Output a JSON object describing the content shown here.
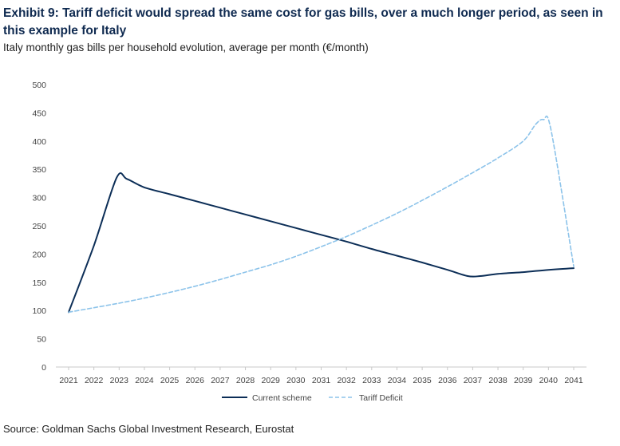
{
  "title": "Exhibit 9: Tariff deficit would spread the same cost for gas bills, over a much longer period, as seen in this example for Italy",
  "subtitle": "Italy monthly gas bills per household evolution, average per month (€/month)",
  "source": "Source: Goldman Sachs Global Investment Research, Eurostat",
  "colors": {
    "current": "#0c2e57",
    "tariff": "#8cc3ea",
    "axis": "#c8c8c8"
  },
  "chart_data": {
    "type": "line",
    "title": "Italy monthly gas bills per household evolution, average per month (€/month)",
    "xlabel": "",
    "ylabel": "€/month",
    "ylim": [
      0,
      500
    ],
    "yticks": [
      "0",
      "50",
      "100",
      "150",
      "200",
      "250",
      "300",
      "350",
      "400",
      "450",
      "500"
    ],
    "xticks": [
      "2021",
      "2022",
      "2023",
      "2024",
      "2025",
      "2026",
      "2027",
      "2028",
      "2029",
      "2030",
      "2031",
      "2032",
      "2033",
      "2034",
      "2035",
      "2036",
      "2037",
      "2038",
      "2039",
      "2040",
      "2041"
    ],
    "series": [
      {
        "name": "Current scheme",
        "style": "solid",
        "x": [
          2021,
          2022,
          2022.9,
          2023.3,
          2024,
          2025,
          2026,
          2027,
          2028,
          2029,
          2030,
          2031,
          2032,
          2033,
          2034,
          2035,
          2036,
          2036.8,
          2037.3,
          2038,
          2039,
          2040,
          2041
        ],
        "values": [
          97,
          215,
          335,
          333,
          318,
          306,
          294,
          282,
          270,
          258,
          246,
          234,
          222,
          209,
          197,
          185,
          172,
          161,
          161,
          165,
          168,
          172,
          175
        ]
      },
      {
        "name": "Tariff Deficit",
        "style": "dashed",
        "x": [
          2021,
          2022,
          2023,
          2024,
          2025,
          2026,
          2027,
          2028,
          2029,
          2030,
          2031,
          2032,
          2033,
          2034,
          2035,
          2036,
          2037,
          2038,
          2039,
          2039.5,
          2039.8,
          2040.1,
          2041
        ],
        "values": [
          97,
          105,
          113,
          122,
          132,
          143,
          155,
          168,
          181,
          196,
          213,
          231,
          251,
          272,
          295,
          319,
          344,
          370,
          400,
          430,
          438,
          420,
          178
        ]
      }
    ],
    "legend": [
      "Current scheme",
      "Tariff Deficit"
    ],
    "legend_position": "bottom"
  }
}
